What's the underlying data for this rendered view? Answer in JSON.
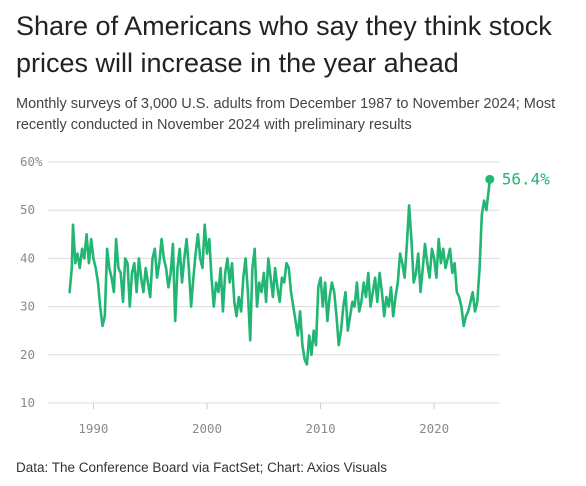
{
  "header": {
    "title": "Share of Americans who say they think stock prices will increase in the year ahead",
    "subtitle": "Monthly surveys of 3,000 U.S. adults from December 1987 to November 2024; Most recently conducted in November 2024 with preliminary results"
  },
  "footer": {
    "source": "Data: The Conference Board via FactSet; Chart: Axios Visuals"
  },
  "colors": {
    "line": "#22b573",
    "grid": "#dddddd",
    "tick": "#8a8a8a"
  },
  "chart_data": {
    "type": "line",
    "title": "Share of Americans who say they think stock prices will increase in the year ahead",
    "xlabel": "",
    "ylabel": "",
    "xlim": [
      1986.0,
      2025.8
    ],
    "ylim": [
      10,
      60
    ],
    "x_ticks": [
      1990,
      2000,
      2010,
      2020
    ],
    "x_tick_labels": [
      "1990",
      "2000",
      "2010",
      "2020"
    ],
    "y_ticks": [
      10,
      20,
      30,
      40,
      50,
      60
    ],
    "y_tick_labels": [
      "10",
      "20",
      "30",
      "40",
      "50",
      "60%"
    ],
    "grid": "horizontal",
    "end_label": "56.4%",
    "series": [
      {
        "points": [
          [
            1987.9,
            33
          ],
          [
            1988.1,
            38
          ],
          [
            1988.2,
            47
          ],
          [
            1988.4,
            39
          ],
          [
            1988.6,
            41
          ],
          [
            1988.8,
            38
          ],
          [
            1989.0,
            42
          ],
          [
            1989.2,
            40
          ],
          [
            1989.4,
            45
          ],
          [
            1989.6,
            39
          ],
          [
            1989.8,
            44
          ],
          [
            1990.0,
            40
          ],
          [
            1990.2,
            38
          ],
          [
            1990.4,
            35
          ],
          [
            1990.6,
            30
          ],
          [
            1990.8,
            26
          ],
          [
            1991.0,
            28
          ],
          [
            1991.2,
            42
          ],
          [
            1991.4,
            38
          ],
          [
            1991.6,
            36
          ],
          [
            1991.8,
            33
          ],
          [
            1992.0,
            44
          ],
          [
            1992.2,
            38
          ],
          [
            1992.4,
            37
          ],
          [
            1992.6,
            31
          ],
          [
            1992.8,
            40
          ],
          [
            1993.0,
            39
          ],
          [
            1993.2,
            30
          ],
          [
            1993.4,
            37
          ],
          [
            1993.6,
            39
          ],
          [
            1993.8,
            33
          ],
          [
            1994.0,
            40
          ],
          [
            1994.2,
            36
          ],
          [
            1994.4,
            33
          ],
          [
            1994.6,
            38
          ],
          [
            1994.8,
            35
          ],
          [
            1995.0,
            32
          ],
          [
            1995.2,
            40
          ],
          [
            1995.4,
            42
          ],
          [
            1995.6,
            36
          ],
          [
            1995.8,
            39
          ],
          [
            1996.0,
            44
          ],
          [
            1996.2,
            40
          ],
          [
            1996.4,
            38
          ],
          [
            1996.6,
            34
          ],
          [
            1996.8,
            37
          ],
          [
            1997.0,
            43
          ],
          [
            1997.2,
            27
          ],
          [
            1997.4,
            38
          ],
          [
            1997.6,
            42
          ],
          [
            1997.8,
            35
          ],
          [
            1998.0,
            40
          ],
          [
            1998.2,
            44
          ],
          [
            1998.4,
            38
          ],
          [
            1998.6,
            30
          ],
          [
            1998.8,
            36
          ],
          [
            1999.0,
            41
          ],
          [
            1999.2,
            45
          ],
          [
            1999.4,
            40
          ],
          [
            1999.6,
            38
          ],
          [
            1999.8,
            47
          ],
          [
            2000.0,
            41
          ],
          [
            2000.2,
            44
          ],
          [
            2000.4,
            36
          ],
          [
            2000.6,
            30
          ],
          [
            2000.8,
            35
          ],
          [
            2001.0,
            33
          ],
          [
            2001.2,
            38
          ],
          [
            2001.4,
            29
          ],
          [
            2001.6,
            37
          ],
          [
            2001.8,
            40
          ],
          [
            2002.0,
            35
          ],
          [
            2002.2,
            39
          ],
          [
            2002.4,
            31
          ],
          [
            2002.6,
            28
          ],
          [
            2002.8,
            32
          ],
          [
            2003.0,
            29
          ],
          [
            2003.2,
            36
          ],
          [
            2003.4,
            40
          ],
          [
            2003.6,
            33
          ],
          [
            2003.8,
            23
          ],
          [
            2004.0,
            38
          ],
          [
            2004.2,
            42
          ],
          [
            2004.4,
            30
          ],
          [
            2004.6,
            35
          ],
          [
            2004.8,
            33
          ],
          [
            2005.0,
            37
          ],
          [
            2005.2,
            31
          ],
          [
            2005.4,
            40
          ],
          [
            2005.6,
            36
          ],
          [
            2005.8,
            32
          ],
          [
            2006.0,
            38
          ],
          [
            2006.2,
            34
          ],
          [
            2006.4,
            31
          ],
          [
            2006.6,
            36
          ],
          [
            2006.8,
            35
          ],
          [
            2007.0,
            39
          ],
          [
            2007.2,
            38
          ],
          [
            2007.4,
            33
          ],
          [
            2007.6,
            30
          ],
          [
            2007.8,
            27
          ],
          [
            2008.0,
            24
          ],
          [
            2008.2,
            29
          ],
          [
            2008.4,
            22
          ],
          [
            2008.6,
            19
          ],
          [
            2008.8,
            18
          ],
          [
            2009.0,
            24
          ],
          [
            2009.2,
            20
          ],
          [
            2009.4,
            25
          ],
          [
            2009.6,
            22
          ],
          [
            2009.8,
            34
          ],
          [
            2010.0,
            36
          ],
          [
            2010.2,
            30
          ],
          [
            2010.4,
            35
          ],
          [
            2010.6,
            27
          ],
          [
            2010.8,
            32
          ],
          [
            2011.0,
            35
          ],
          [
            2011.2,
            33
          ],
          [
            2011.4,
            28
          ],
          [
            2011.6,
            22
          ],
          [
            2011.8,
            25
          ],
          [
            2012.0,
            30
          ],
          [
            2012.2,
            33
          ],
          [
            2012.4,
            25
          ],
          [
            2012.6,
            28
          ],
          [
            2012.8,
            31
          ],
          [
            2013.0,
            30
          ],
          [
            2013.2,
            35
          ],
          [
            2013.4,
            29
          ],
          [
            2013.6,
            31
          ],
          [
            2013.8,
            35
          ],
          [
            2014.0,
            32
          ],
          [
            2014.2,
            37
          ],
          [
            2014.4,
            30
          ],
          [
            2014.6,
            33
          ],
          [
            2014.8,
            36
          ],
          [
            2015.0,
            31
          ],
          [
            2015.2,
            37
          ],
          [
            2015.4,
            33
          ],
          [
            2015.6,
            28
          ],
          [
            2015.8,
            32
          ],
          [
            2016.0,
            30
          ],
          [
            2016.2,
            34
          ],
          [
            2016.4,
            28
          ],
          [
            2016.6,
            32
          ],
          [
            2016.8,
            35
          ],
          [
            2017.0,
            41
          ],
          [
            2017.2,
            39
          ],
          [
            2017.4,
            36
          ],
          [
            2017.6,
            43
          ],
          [
            2017.8,
            51
          ],
          [
            2018.0,
            44
          ],
          [
            2018.2,
            35
          ],
          [
            2018.4,
            37
          ],
          [
            2018.6,
            41
          ],
          [
            2018.8,
            33
          ],
          [
            2019.0,
            38
          ],
          [
            2019.2,
            43
          ],
          [
            2019.4,
            39
          ],
          [
            2019.6,
            36
          ],
          [
            2019.8,
            42
          ],
          [
            2020.0,
            40
          ],
          [
            2020.2,
            36
          ],
          [
            2020.4,
            44
          ],
          [
            2020.6,
            39
          ],
          [
            2020.8,
            42
          ],
          [
            2021.0,
            38
          ],
          [
            2021.2,
            40
          ],
          [
            2021.4,
            42
          ],
          [
            2021.6,
            37
          ],
          [
            2021.8,
            39
          ],
          [
            2022.0,
            33
          ],
          [
            2022.2,
            32
          ],
          [
            2022.4,
            30
          ],
          [
            2022.6,
            26
          ],
          [
            2022.8,
            28
          ],
          [
            2023.0,
            29
          ],
          [
            2023.2,
            31
          ],
          [
            2023.4,
            33
          ],
          [
            2023.6,
            29
          ],
          [
            2023.8,
            31
          ],
          [
            2024.0,
            38
          ],
          [
            2024.2,
            49
          ],
          [
            2024.4,
            52
          ],
          [
            2024.6,
            50
          ],
          [
            2024.8,
            54
          ],
          [
            2024.9,
            56.4
          ]
        ]
      }
    ]
  }
}
